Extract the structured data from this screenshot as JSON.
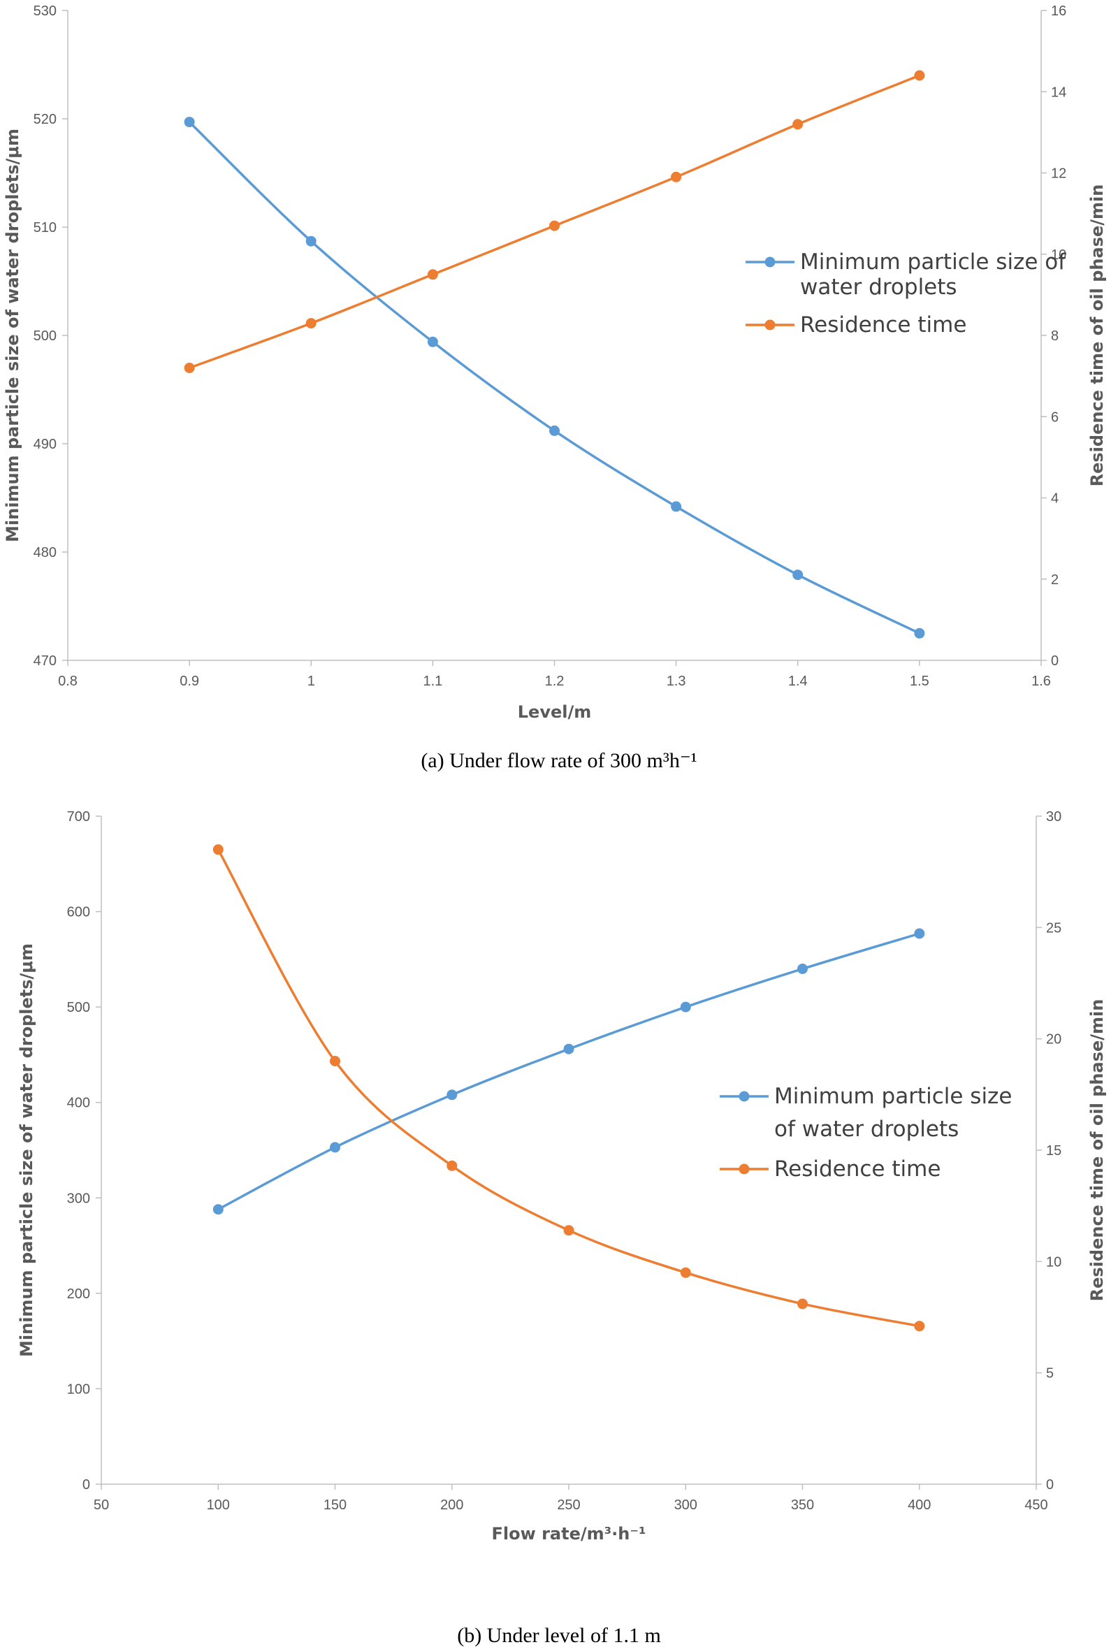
{
  "chart_data": [
    {
      "type": "line",
      "caption": "(a) Under flow rate of 300 m³h⁻¹",
      "xlabel": "Level/m",
      "ylabel": "Minimum particle size of water droplets/μm",
      "y2label": "Residence time of oil phase/min",
      "xlim": [
        0.8,
        1.6
      ],
      "ylim": [
        470,
        530
      ],
      "y2lim": [
        0,
        16
      ],
      "x_ticks": [
        "0.8",
        "0.9",
        "1",
        "1.1",
        "1.2",
        "1.3",
        "1.4",
        "1.5",
        "1.6"
      ],
      "y_ticks": [
        "470",
        "480",
        "490",
        "500",
        "510",
        "520",
        "530"
      ],
      "y2_ticks": [
        "0",
        "2",
        "4",
        "6",
        "8",
        "10",
        "12",
        "14",
        "16"
      ],
      "legend_position": "right-center",
      "series": [
        {
          "name": "Minimum particle size of water droplets",
          "legend_lines": [
            "Minimum particle size of",
            "water droplets"
          ],
          "axis": "left",
          "color": "#5B9BD5",
          "x": [
            0.9,
            1.0,
            1.1,
            1.2,
            1.3,
            1.4,
            1.5
          ],
          "values": [
            519.7,
            508.7,
            499.4,
            491.2,
            484.2,
            477.9,
            472.5
          ]
        },
        {
          "name": "Residence time",
          "legend_lines": [
            "Residence time"
          ],
          "axis": "right",
          "color": "#ED7D31",
          "x": [
            0.9,
            1.0,
            1.1,
            1.2,
            1.3,
            1.4,
            1.5
          ],
          "values": [
            7.2,
            8.3,
            9.5,
            10.7,
            11.9,
            13.2,
            14.4
          ]
        }
      ]
    },
    {
      "type": "line",
      "caption": "(b) Under level of 1.1 m",
      "xlabel": "Flow rate/m³·h⁻¹",
      "ylabel": "Minimum particle size of water droplets/μm",
      "y2label": "Residence time of oil phase/min",
      "xlim": [
        50,
        450
      ],
      "ylim": [
        0,
        700
      ],
      "y2lim": [
        0,
        30
      ],
      "x_ticks": [
        "50",
        "100",
        "150",
        "200",
        "250",
        "300",
        "350",
        "400",
        "450"
      ],
      "y_ticks": [
        "0",
        "100",
        "200",
        "300",
        "400",
        "500",
        "600",
        "700"
      ],
      "y2_ticks": [
        "0",
        "5",
        "10",
        "15",
        "20",
        "25",
        "30"
      ],
      "legend_position": "right-center",
      "series": [
        {
          "name": "Minimum particle size of water droplets",
          "legend_lines": [
            "Minimum particle size",
            "of water droplets"
          ],
          "axis": "left",
          "color": "#5B9BD5",
          "x": [
            100,
            150,
            200,
            250,
            300,
            350,
            400
          ],
          "values": [
            288,
            353,
            408,
            456,
            500,
            540,
            577
          ]
        },
        {
          "name": "Residence time",
          "legend_lines": [
            "Residence time"
          ],
          "axis": "right",
          "color": "#ED7D31",
          "x": [
            100,
            150,
            200,
            250,
            300,
            350,
            400
          ],
          "values": [
            28.5,
            19.0,
            14.3,
            11.4,
            9.5,
            8.1,
            7.1
          ]
        }
      ]
    }
  ]
}
